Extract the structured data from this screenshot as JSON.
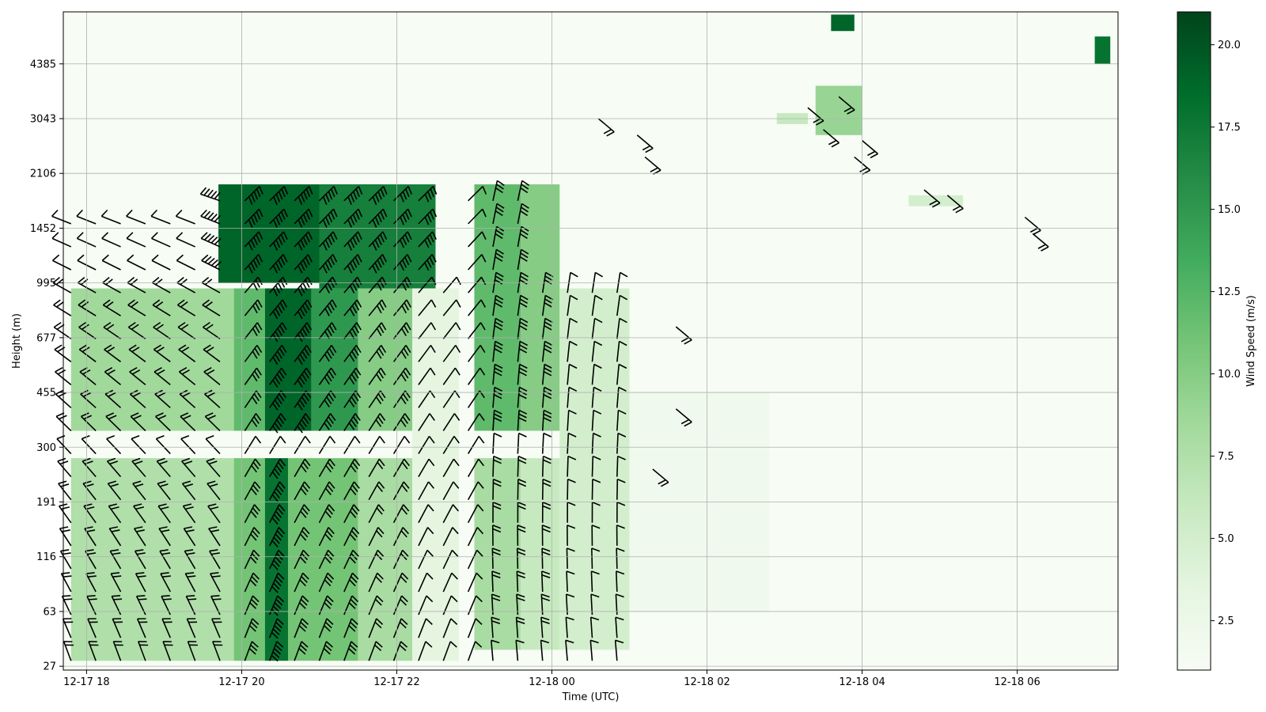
{
  "chart_data": {
    "type": "heatmap",
    "title": "",
    "xlabel": "Time (UTC)",
    "ylabel": "Height (m)",
    "x_ticks": [
      "12-17 18",
      "12-17 20",
      "12-17 22",
      "12-18 00",
      "12-18 02",
      "12-18 04",
      "12-18 06"
    ],
    "x_tick_hours": [
      0,
      2,
      4,
      6,
      8,
      10,
      12
    ],
    "x_range_hours": [
      -0.3,
      13.3
    ],
    "y_ticks": [
      "27",
      "63",
      "116",
      "191",
      "300",
      "455",
      "677",
      "995",
      "1452",
      "2106",
      "3043",
      "4385"
    ],
    "y_tick_index": [
      0,
      1,
      2,
      3,
      4,
      5,
      6,
      7,
      8,
      9,
      10,
      11
    ],
    "colorbar": {
      "label": "Wind Speed (m/s)",
      "ticks": [
        2.5,
        5.0,
        7.5,
        10.0,
        12.5,
        15.0,
        17.5,
        20.0
      ],
      "range": [
        1.0,
        21.0
      ],
      "colormap": "Greens",
      "colors": [
        "#f7fcf5",
        "#e5f5e0",
        "#c7e9c0",
        "#a1d99b",
        "#74c476",
        "#41ab5d",
        "#238b45",
        "#006d2c",
        "#00441b"
      ]
    },
    "grid": true,
    "wind_barbs": true,
    "regions": [
      {
        "hours": [
          -0.2,
          1.9
        ],
        "levels": [
          0.1,
          3.8
        ],
        "speed": 7.5
      },
      {
        "hours": [
          -0.2,
          1.9
        ],
        "levels": [
          4.3,
          6.9
        ],
        "speed": 8.5
      },
      {
        "hours": [
          1.9,
          2.3
        ],
        "levels": [
          0.1,
          3.8
        ],
        "speed": 11
      },
      {
        "hours": [
          1.9,
          2.3
        ],
        "levels": [
          4.3,
          6.9
        ],
        "speed": 12
      },
      {
        "hours": [
          2.3,
          2.6
        ],
        "levels": [
          0.1,
          3.8
        ],
        "speed": 18
      },
      {
        "hours": [
          2.3,
          2.9
        ],
        "levels": [
          4.3,
          6.9
        ],
        "speed": 19
      },
      {
        "hours": [
          1.7,
          3.8
        ],
        "levels": [
          7.0,
          8.8
        ],
        "speed": 19
      },
      {
        "hours": [
          2.9,
          3.5
        ],
        "levels": [
          4.3,
          6.9
        ],
        "speed": 15
      },
      {
        "hours": [
          2.6,
          3.5
        ],
        "levels": [
          0.1,
          3.8
        ],
        "speed": 11
      },
      {
        "hours": [
          3.5,
          4.2
        ],
        "levels": [
          0.1,
          3.8
        ],
        "speed": 8
      },
      {
        "hours": [
          3.5,
          4.2
        ],
        "levels": [
          4.3,
          6.9
        ],
        "speed": 10
      },
      {
        "hours": [
          3.0,
          4.5
        ],
        "levels": [
          6.9,
          8.8
        ],
        "speed": 17
      },
      {
        "hours": [
          4.2,
          4.8
        ],
        "levels": [
          0.1,
          6.9
        ],
        "speed": 3.5
      },
      {
        "hours": [
          5.0,
          5.6
        ],
        "levels": [
          0.3,
          3.8
        ],
        "speed": 8
      },
      {
        "hours": [
          5.0,
          5.6
        ],
        "levels": [
          4.3,
          8.8
        ],
        "speed": 12
      },
      {
        "hours": [
          5.6,
          6.1
        ],
        "levels": [
          0.3,
          3.8
        ],
        "speed": 6
      },
      {
        "hours": [
          5.6,
          6.1
        ],
        "levels": [
          4.3,
          8.8
        ],
        "speed": 10
      },
      {
        "hours": [
          6.1,
          7.0
        ],
        "levels": [
          0.3,
          6.9
        ],
        "speed": 5
      },
      {
        "hours": [
          7.0,
          8.8
        ],
        "levels": [
          1.0,
          5.0
        ],
        "speed": 2
      },
      {
        "hours": [
          8.9,
          9.3
        ],
        "levels": [
          9.9,
          10.1
        ],
        "speed": 6
      },
      {
        "hours": [
          9.4,
          10.0
        ],
        "levels": [
          9.7,
          10.6
        ],
        "speed": 9
      },
      {
        "hours": [
          10.6,
          11.3
        ],
        "levels": [
          8.4,
          8.6
        ],
        "speed": 5
      },
      {
        "hours": [
          13.0,
          13.2
        ],
        "levels": [
          11.0,
          11.5
        ],
        "speed": 18
      },
      {
        "hours": [
          9.6,
          9.9
        ],
        "levels": [
          11.6,
          11.9
        ],
        "speed": 19
      }
    ]
  }
}
